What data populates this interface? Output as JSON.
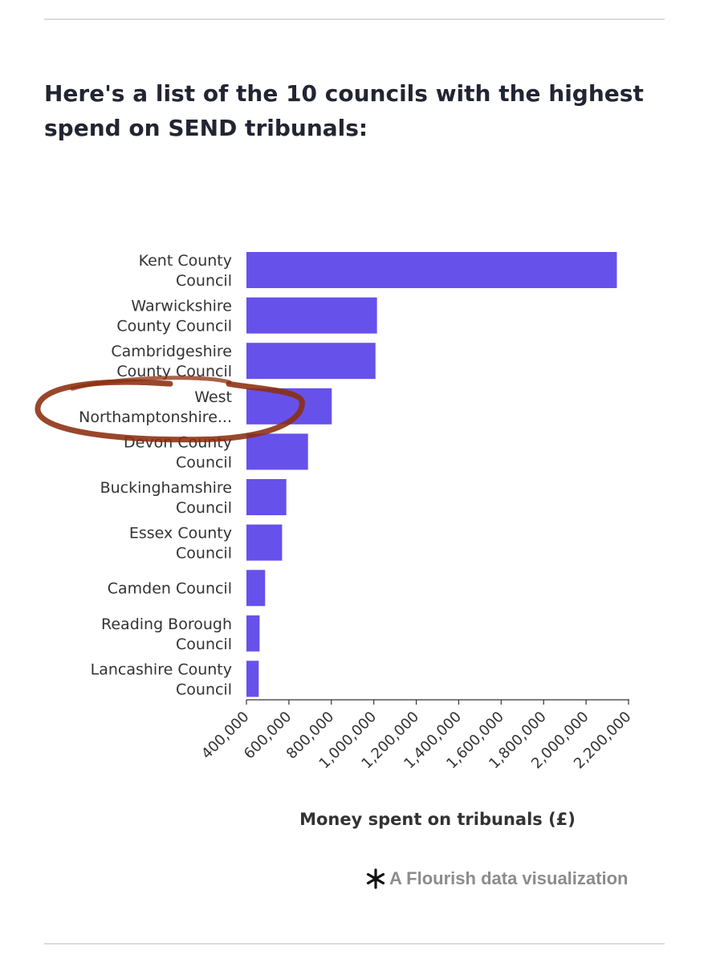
{
  "title": "Here's a list of the 10 councils with the highest spend on SEND tribunals:",
  "credit": "A Flourish data visualization",
  "colors": {
    "bar": "#6651eb",
    "annotation": "#8b2d0e"
  },
  "chart_data": {
    "type": "bar",
    "orientation": "horizontal",
    "title": "Here's a list of the 10 councils with the highest spend on SEND tribunals:",
    "xlabel": "Money spent on tribunals (£)",
    "ylabel": "",
    "xlim": [
      400000,
      2200000
    ],
    "xticks": [
      "400,000",
      "600,000",
      "800,000",
      "1,000,000",
      "1,200,000",
      "1,400,000",
      "1,600,000",
      "1,800,000",
      "2,000,000",
      "2,200,000"
    ],
    "xtick_values": [
      400000,
      600000,
      800000,
      1000000,
      1200000,
      1400000,
      1600000,
      1800000,
      2000000,
      2200000
    ],
    "categories": [
      [
        "Kent County",
        "Council"
      ],
      [
        "Warwickshire",
        "County Council"
      ],
      [
        "Cambridgeshire",
        "County Council"
      ],
      [
        "West",
        "Northamptonshire..."
      ],
      [
        "Devon County",
        "Council"
      ],
      [
        "Buckinghamshire",
        "Council"
      ],
      [
        "Essex County",
        "Council"
      ],
      [
        "Camden Council"
      ],
      [
        "Reading Borough",
        "Council"
      ],
      [
        "Lancashire County",
        "Council"
      ]
    ],
    "values": [
      2145000,
      1015000,
      1008000,
      802000,
      690000,
      588000,
      568000,
      488000,
      462000,
      458000
    ],
    "annotation": {
      "type": "hand-drawn circle",
      "target_category": "West Northamptonshire..."
    },
    "grid": false,
    "legend": "none"
  }
}
